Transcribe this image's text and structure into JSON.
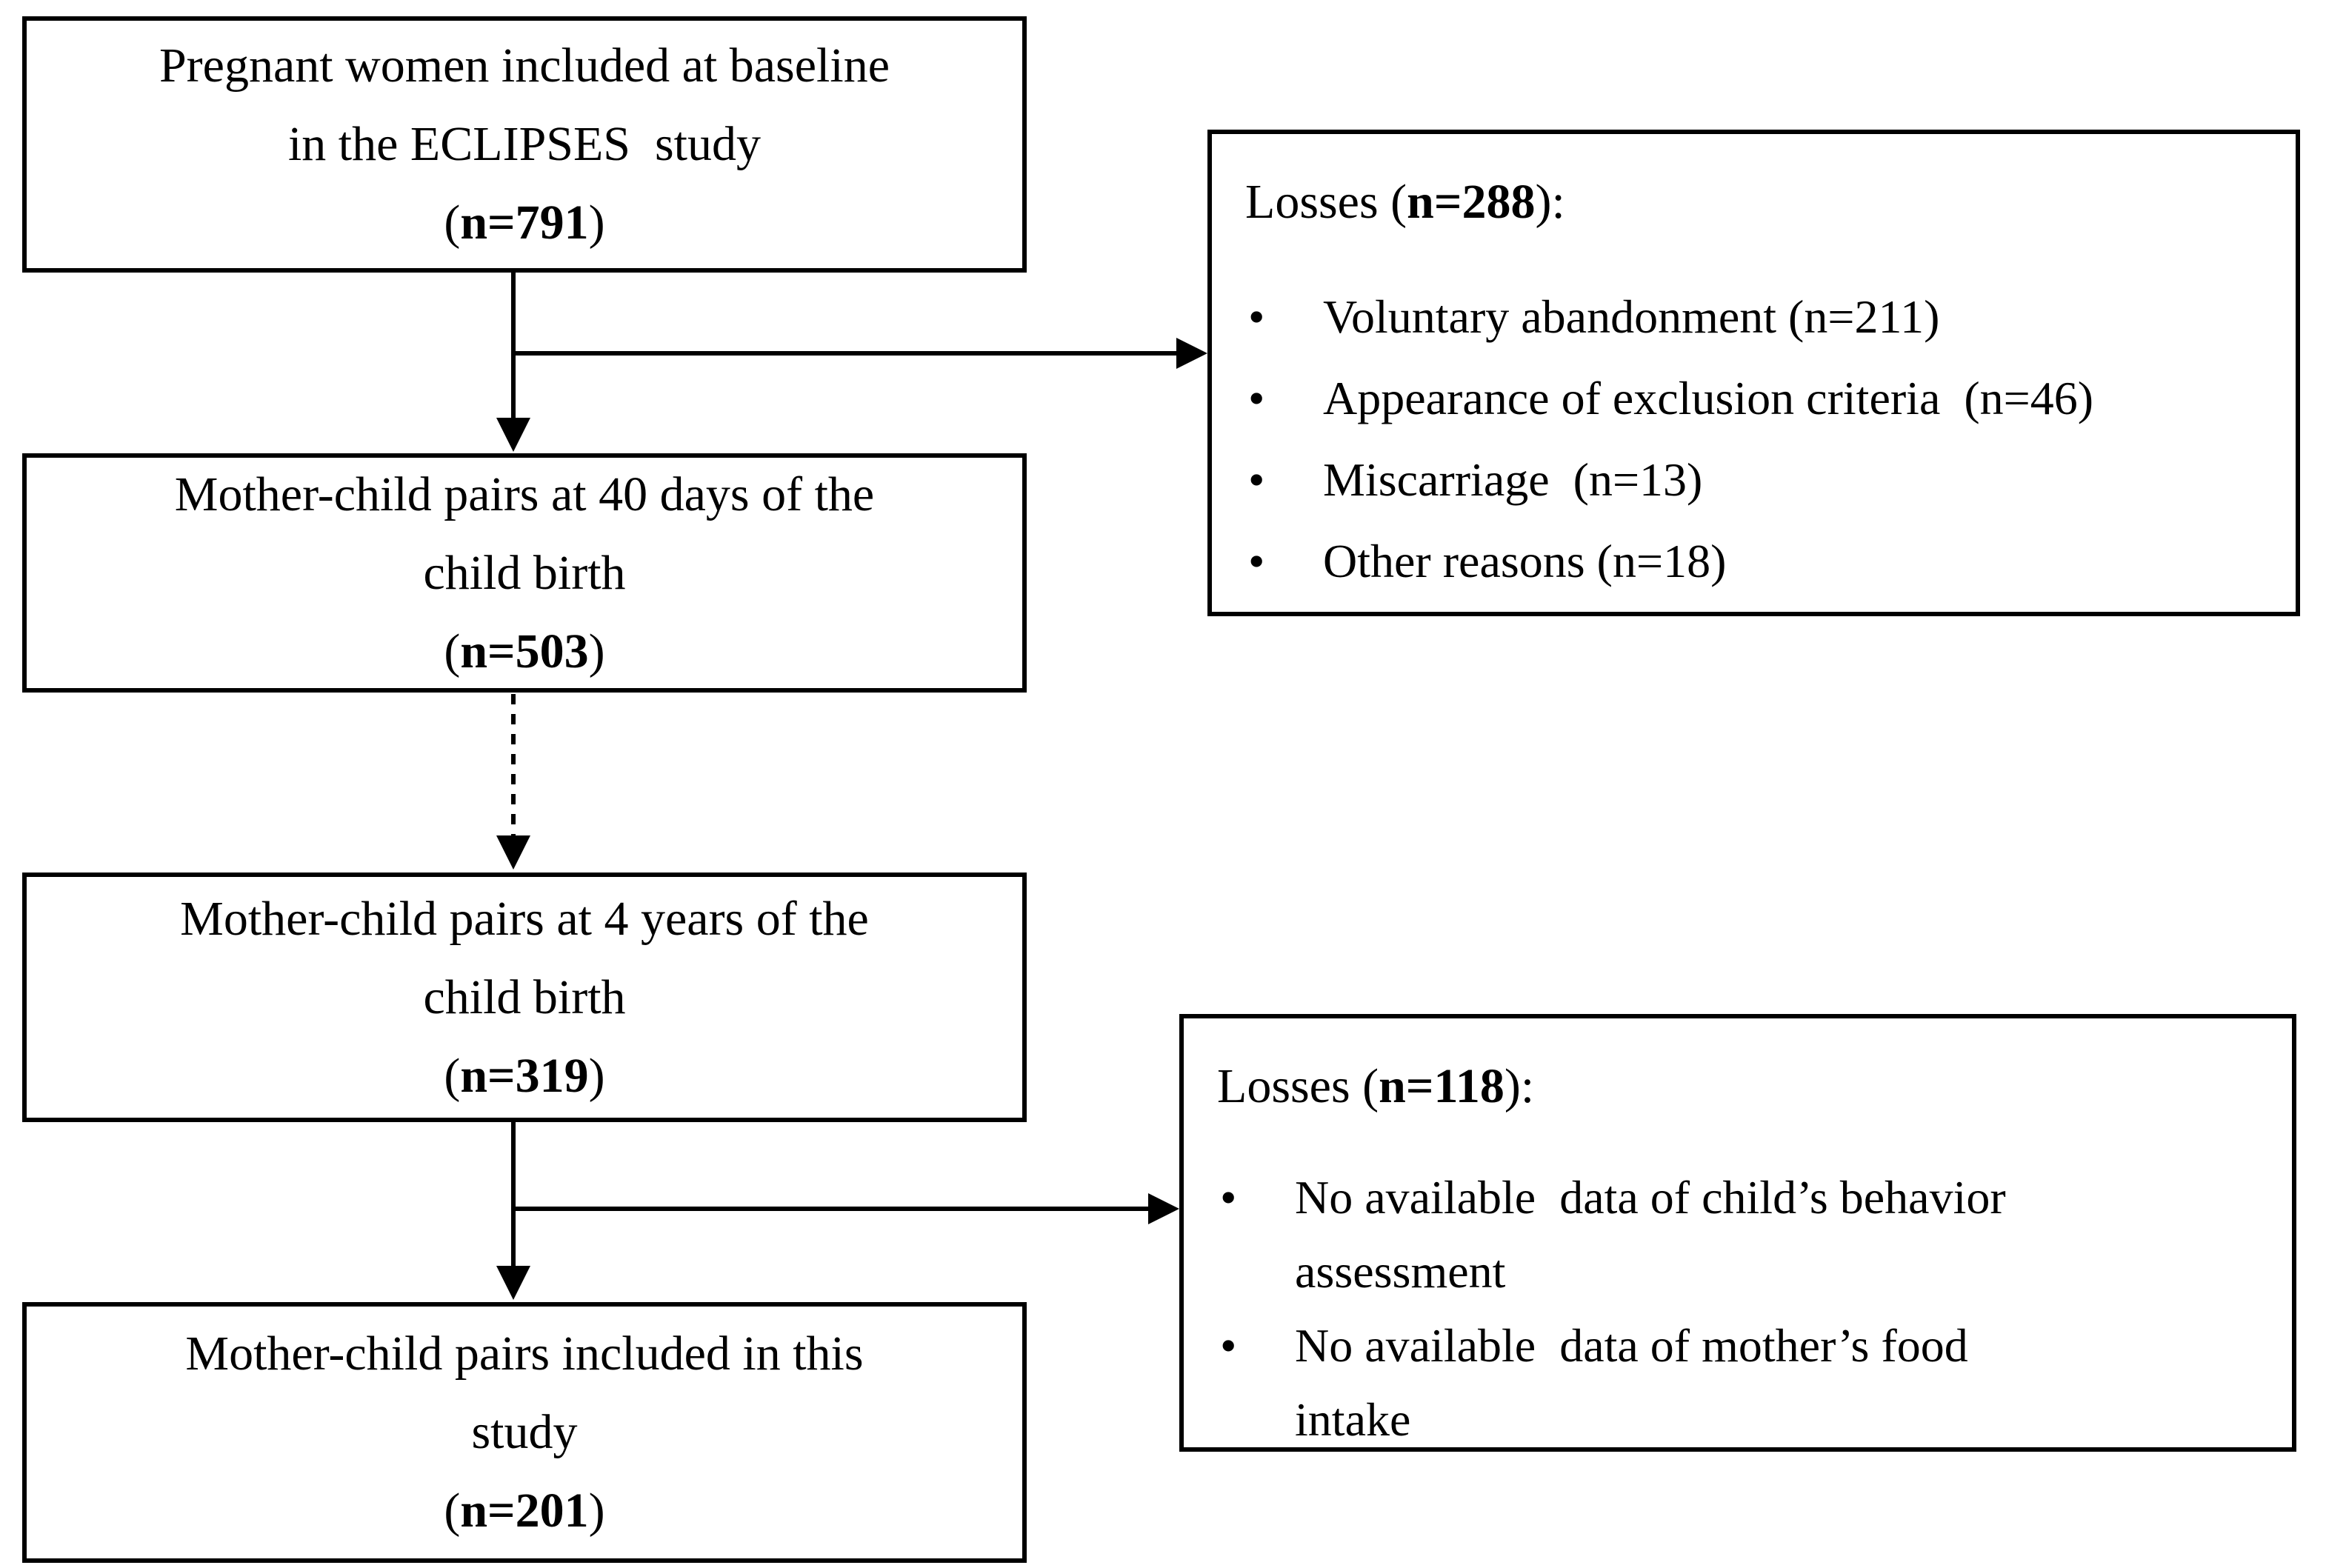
{
  "canvas": {
    "background": "#ffffff",
    "line_color": "#000000"
  },
  "syms": {
    "open_paren": "(",
    "close_paren": ")",
    "bullet": "•"
  },
  "main_boxes": [
    {
      "line1": "Pregnant women included at baseline",
      "line2": "in the ECLIPSES  study",
      "n": "n=791"
    },
    {
      "line1": "Mother-child pairs at 40 days of the",
      "line2": "child birth",
      "n": "n=503"
    },
    {
      "line1": "Mother-child pairs at 4 years of the",
      "line2": "child birth",
      "n": "n=319"
    },
    {
      "line1": "Mother-child pairs included in this",
      "line2": "study",
      "n": "n=201"
    }
  ],
  "loss_boxes": [
    {
      "title_prefix": "Losses (",
      "title_n": "n=288",
      "title_suffix": "):",
      "items": [
        [
          "Voluntary abandonment (n=211)"
        ],
        [
          "Appearance of exclusion criteria  (n=46)"
        ],
        [
          "Miscarriage  (n=13)"
        ],
        [
          "Other reasons (n=18)"
        ]
      ]
    },
    {
      "title_prefix": "Losses (",
      "title_n": "n=118",
      "title_suffix": "):",
      "items": [
        [
          "No available  data of child’s behavior",
          "assessment"
        ],
        [
          "No available  data of mother’s food",
          "intake"
        ]
      ]
    }
  ]
}
